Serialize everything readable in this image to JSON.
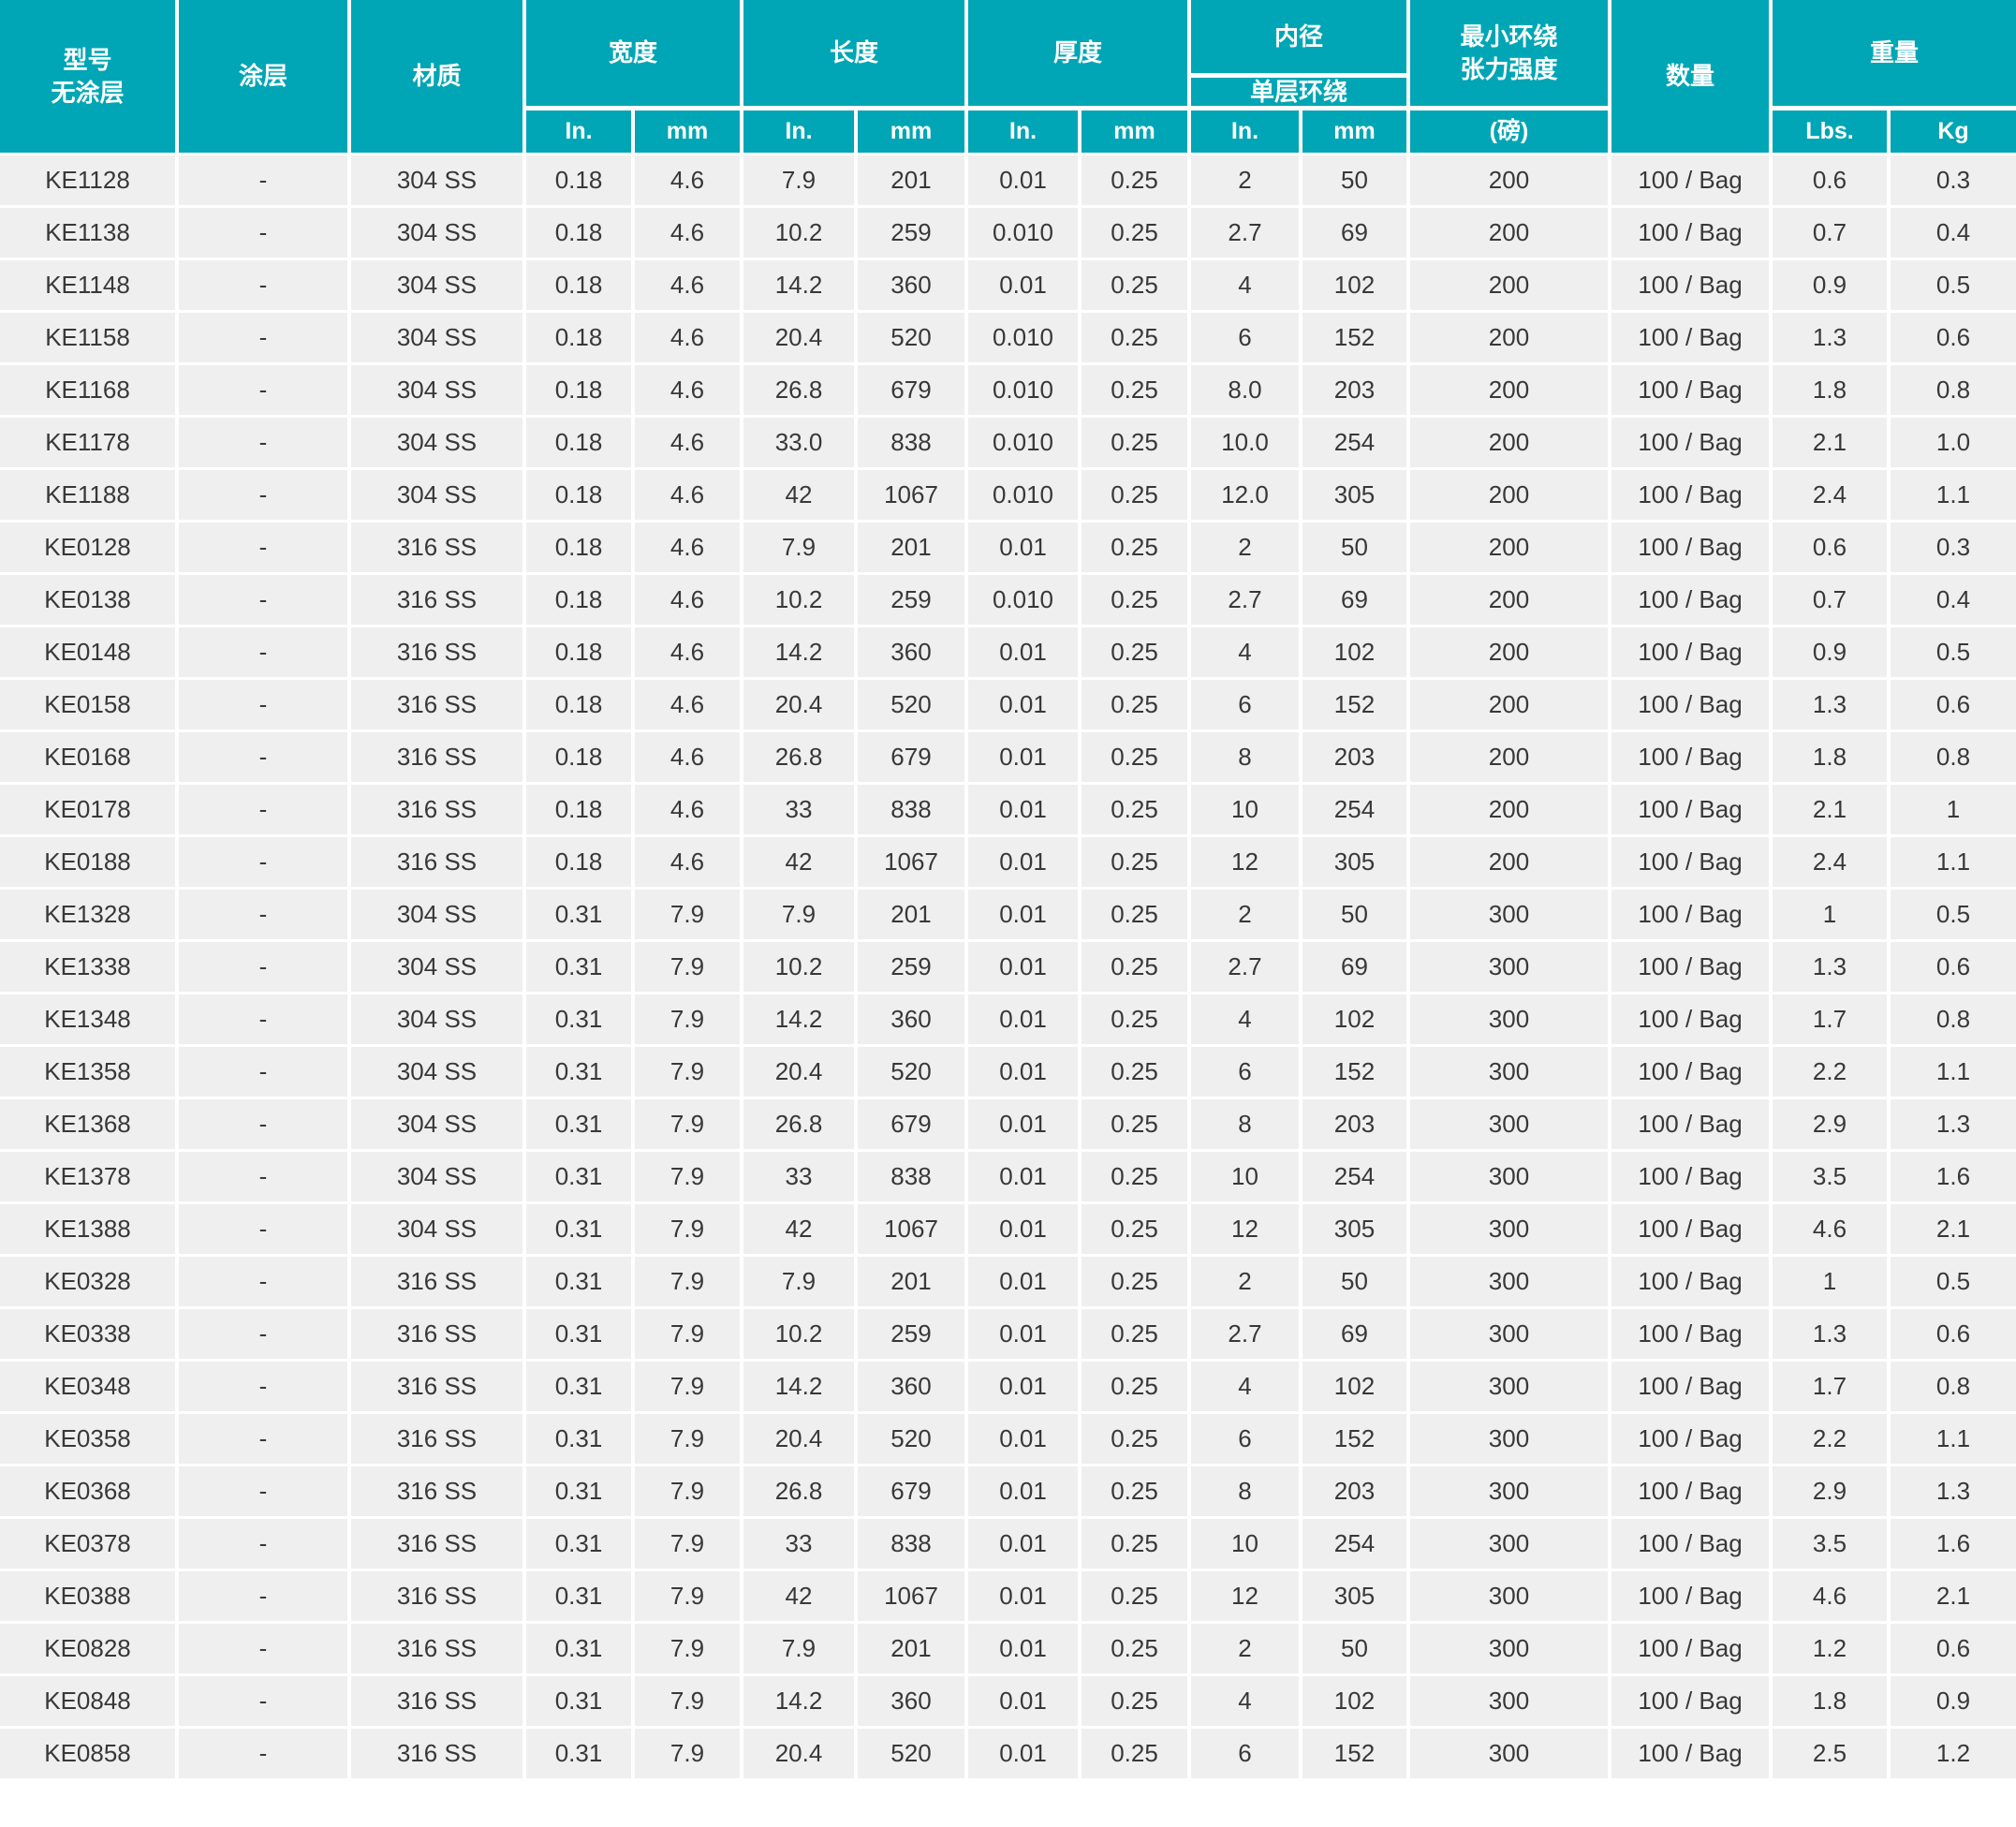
{
  "colors": {
    "header_teal": "#00a6b5",
    "row_background": "#efefef",
    "data_text": "#383838",
    "header_text": "#ffffff",
    "gridline": "#ffffff"
  },
  "table": {
    "header": {
      "model_line1": "型号",
      "model_line2": "无涂层",
      "coating": "涂层",
      "material": "材质",
      "width": "宽度",
      "length": "长度",
      "thickness": "厚度",
      "inner_diameter": "内径",
      "single_layer_wrap": "单层环绕",
      "min_strength_line1": "最小环绕",
      "min_strength_line2": "张力强度",
      "strength_unit": "(磅)",
      "quantity": "数量",
      "weight": "重量",
      "unit_in": "In.",
      "unit_mm": "mm",
      "unit_lbs": "Lbs.",
      "unit_kg": "Kg"
    },
    "columns": [
      "model",
      "coating",
      "material",
      "width_in",
      "width_mm",
      "length_in",
      "length_mm",
      "thickness_in",
      "thickness_mm",
      "inner_diameter_in",
      "inner_diameter_mm",
      "min_loop_tensile_strength_lbs",
      "quantity",
      "weight_lbs",
      "weight_kg"
    ],
    "rows": [
      [
        "KE1128",
        "-",
        "304 SS",
        "0.18",
        "4.6",
        "7.9",
        "201",
        "0.01",
        "0.25",
        "2",
        "50",
        "200",
        "100 / Bag",
        "0.6",
        "0.3"
      ],
      [
        "KE1138",
        "-",
        "304 SS",
        "0.18",
        "4.6",
        "10.2",
        "259",
        "0.010",
        "0.25",
        "2.7",
        "69",
        "200",
        "100 / Bag",
        "0.7",
        "0.4"
      ],
      [
        "KE1148",
        "-",
        "304 SS",
        "0.18",
        "4.6",
        "14.2",
        "360",
        "0.01",
        "0.25",
        "4",
        "102",
        "200",
        "100 / Bag",
        "0.9",
        "0.5"
      ],
      [
        "KE1158",
        "-",
        "304 SS",
        "0.18",
        "4.6",
        "20.4",
        "520",
        "0.010",
        "0.25",
        "6",
        "152",
        "200",
        "100 / Bag",
        "1.3",
        "0.6"
      ],
      [
        "KE1168",
        "-",
        "304 SS",
        "0.18",
        "4.6",
        "26.8",
        "679",
        "0.010",
        "0.25",
        "8.0",
        "203",
        "200",
        "100 / Bag",
        "1.8",
        "0.8"
      ],
      [
        "KE1178",
        "-",
        "304 SS",
        "0.18",
        "4.6",
        "33.0",
        "838",
        "0.010",
        "0.25",
        "10.0",
        "254",
        "200",
        "100 / Bag",
        "2.1",
        "1.0"
      ],
      [
        "KE1188",
        "-",
        "304 SS",
        "0.18",
        "4.6",
        "42",
        "1067",
        "0.010",
        "0.25",
        "12.0",
        "305",
        "200",
        "100 / Bag",
        "2.4",
        "1.1"
      ],
      [
        "KE0128",
        "-",
        "316 SS",
        "0.18",
        "4.6",
        "7.9",
        "201",
        "0.01",
        "0.25",
        "2",
        "50",
        "200",
        "100 / Bag",
        "0.6",
        "0.3"
      ],
      [
        "KE0138",
        "-",
        "316 SS",
        "0.18",
        "4.6",
        "10.2",
        "259",
        "0.010",
        "0.25",
        "2.7",
        "69",
        "200",
        "100 / Bag",
        "0.7",
        "0.4"
      ],
      [
        "KE0148",
        "-",
        "316 SS",
        "0.18",
        "4.6",
        "14.2",
        "360",
        "0.01",
        "0.25",
        "4",
        "102",
        "200",
        "100 / Bag",
        "0.9",
        "0.5"
      ],
      [
        "KE0158",
        "-",
        "316 SS",
        "0.18",
        "4.6",
        "20.4",
        "520",
        "0.01",
        "0.25",
        "6",
        "152",
        "200",
        "100 / Bag",
        "1.3",
        "0.6"
      ],
      [
        "KE0168",
        "-",
        "316 SS",
        "0.18",
        "4.6",
        "26.8",
        "679",
        "0.01",
        "0.25",
        "8",
        "203",
        "200",
        "100 / Bag",
        "1.8",
        "0.8"
      ],
      [
        "KE0178",
        "-",
        "316 SS",
        "0.18",
        "4.6",
        "33",
        "838",
        "0.01",
        "0.25",
        "10",
        "254",
        "200",
        "100 / Bag",
        "2.1",
        "1"
      ],
      [
        "KE0188",
        "-",
        "316 SS",
        "0.18",
        "4.6",
        "42",
        "1067",
        "0.01",
        "0.25",
        "12",
        "305",
        "200",
        "100 / Bag",
        "2.4",
        "1.1"
      ],
      [
        "KE1328",
        "-",
        "304 SS",
        "0.31",
        "7.9",
        "7.9",
        "201",
        "0.01",
        "0.25",
        "2",
        "50",
        "300",
        "100 / Bag",
        "1",
        "0.5"
      ],
      [
        "KE1338",
        "-",
        "304 SS",
        "0.31",
        "7.9",
        "10.2",
        "259",
        "0.01",
        "0.25",
        "2.7",
        "69",
        "300",
        "100 / Bag",
        "1.3",
        "0.6"
      ],
      [
        "KE1348",
        "-",
        "304 SS",
        "0.31",
        "7.9",
        "14.2",
        "360",
        "0.01",
        "0.25",
        "4",
        "102",
        "300",
        "100 / Bag",
        "1.7",
        "0.8"
      ],
      [
        "KE1358",
        "-",
        "304 SS",
        "0.31",
        "7.9",
        "20.4",
        "520",
        "0.01",
        "0.25",
        "6",
        "152",
        "300",
        "100 / Bag",
        "2.2",
        "1.1"
      ],
      [
        "KE1368",
        "-",
        "304 SS",
        "0.31",
        "7.9",
        "26.8",
        "679",
        "0.01",
        "0.25",
        "8",
        "203",
        "300",
        "100 / Bag",
        "2.9",
        "1.3"
      ],
      [
        "KE1378",
        "-",
        "304 SS",
        "0.31",
        "7.9",
        "33",
        "838",
        "0.01",
        "0.25",
        "10",
        "254",
        "300",
        "100 / Bag",
        "3.5",
        "1.6"
      ],
      [
        "KE1388",
        "-",
        "304 SS",
        "0.31",
        "7.9",
        "42",
        "1067",
        "0.01",
        "0.25",
        "12",
        "305",
        "300",
        "100 / Bag",
        "4.6",
        "2.1"
      ],
      [
        "KE0328",
        "-",
        "316 SS",
        "0.31",
        "7.9",
        "7.9",
        "201",
        "0.01",
        "0.25",
        "2",
        "50",
        "300",
        "100 / Bag",
        "1",
        "0.5"
      ],
      [
        "KE0338",
        "-",
        "316 SS",
        "0.31",
        "7.9",
        "10.2",
        "259",
        "0.01",
        "0.25",
        "2.7",
        "69",
        "300",
        "100 / Bag",
        "1.3",
        "0.6"
      ],
      [
        "KE0348",
        "-",
        "316 SS",
        "0.31",
        "7.9",
        "14.2",
        "360",
        "0.01",
        "0.25",
        "4",
        "102",
        "300",
        "100 / Bag",
        "1.7",
        "0.8"
      ],
      [
        "KE0358",
        "-",
        "316 SS",
        "0.31",
        "7.9",
        "20.4",
        "520",
        "0.01",
        "0.25",
        "6",
        "152",
        "300",
        "100 / Bag",
        "2.2",
        "1.1"
      ],
      [
        "KE0368",
        "-",
        "316 SS",
        "0.31",
        "7.9",
        "26.8",
        "679",
        "0.01",
        "0.25",
        "8",
        "203",
        "300",
        "100 / Bag",
        "2.9",
        "1.3"
      ],
      [
        "KE0378",
        "-",
        "316 SS",
        "0.31",
        "7.9",
        "33",
        "838",
        "0.01",
        "0.25",
        "10",
        "254",
        "300",
        "100 / Bag",
        "3.5",
        "1.6"
      ],
      [
        "KE0388",
        "-",
        "316 SS",
        "0.31",
        "7.9",
        "42",
        "1067",
        "0.01",
        "0.25",
        "12",
        "305",
        "300",
        "100 / Bag",
        "4.6",
        "2.1"
      ],
      [
        "KE0828",
        "-",
        "316 SS",
        "0.31",
        "7.9",
        "7.9",
        "201",
        "0.01",
        "0.25",
        "2",
        "50",
        "300",
        "100 / Bag",
        "1.2",
        "0.6"
      ],
      [
        "KE0848",
        "-",
        "316 SS",
        "0.31",
        "7.9",
        "14.2",
        "360",
        "0.01",
        "0.25",
        "4",
        "102",
        "300",
        "100 / Bag",
        "1.8",
        "0.9"
      ],
      [
        "KE0858",
        "-",
        "316 SS",
        "0.31",
        "7.9",
        "20.4",
        "520",
        "0.01",
        "0.25",
        "6",
        "152",
        "300",
        "100 / Bag",
        "2.5",
        "1.2"
      ]
    ]
  }
}
